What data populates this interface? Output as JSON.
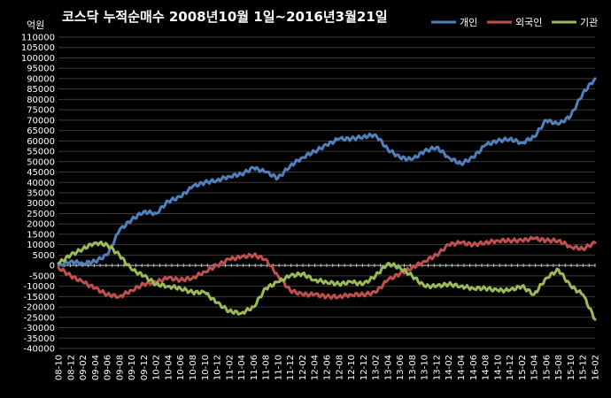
{
  "chart_data": {
    "type": "line",
    "title": "코스닥 누적순매수 2008년10월 1일~2016년3월21일",
    "ylabel": "억원",
    "xlabel": "",
    "ylim": [
      -40000,
      110000
    ],
    "y_tick_step": 5000,
    "grid": true,
    "legend_position": "top-right",
    "x": [
      "08-10",
      "08-12",
      "09-02",
      "09-04",
      "09-06",
      "09-08",
      "09-10",
      "09-12",
      "10-02",
      "10-04",
      "10-06",
      "10-08",
      "10-10",
      "10-12",
      "11-02",
      "11-04",
      "11-06",
      "11-08",
      "11-10",
      "11-12",
      "12-02",
      "12-04",
      "12-06",
      "12-08",
      "12-10",
      "12-12",
      "13-02",
      "13-04",
      "13-06",
      "13-08",
      "13-10",
      "13-12",
      "14-02",
      "14-04",
      "14-06",
      "14-08",
      "14-10",
      "14-12",
      "15-02",
      "15-04",
      "15-06",
      "15-08",
      "15-10",
      "15-12",
      "16-02"
    ],
    "series": [
      {
        "name": "개인",
        "color": "#4f81bd",
        "values": [
          0,
          2000,
          1000,
          2000,
          5000,
          17000,
          22000,
          26000,
          25000,
          31000,
          33000,
          38000,
          40000,
          41000,
          43000,
          44000,
          47000,
          45000,
          42000,
          48000,
          52000,
          55000,
          58000,
          61000,
          61000,
          62000,
          63000,
          56000,
          52000,
          51000,
          55000,
          57000,
          52000,
          49000,
          52000,
          58000,
          60000,
          61000,
          59000,
          62000,
          70000,
          68000,
          72000,
          83000,
          90000
        ]
      },
      {
        "name": "외국인",
        "color": "#c0504d",
        "values": [
          -1000,
          -5000,
          -8000,
          -11000,
          -14000,
          -15000,
          -12000,
          -9000,
          -8000,
          -6000,
          -7000,
          -6000,
          -3000,
          0,
          3000,
          4000,
          5000,
          3000,
          -5000,
          -12000,
          -14000,
          -14000,
          -15000,
          -15000,
          -14000,
          -14000,
          -13000,
          -7000,
          -4000,
          -1000,
          2000,
          5000,
          10000,
          11000,
          10000,
          11000,
          12000,
          12000,
          12000,
          13000,
          12000,
          12000,
          9000,
          8000,
          11000
        ]
      },
      {
        "name": "기관",
        "color": "#9bbb59",
        "values": [
          1000,
          5000,
          8000,
          11000,
          10000,
          5000,
          -2000,
          -5000,
          -9000,
          -10000,
          -11000,
          -13000,
          -13000,
          -18000,
          -22000,
          -23000,
          -20000,
          -11000,
          -8000,
          -5000,
          -4000,
          -7000,
          -8000,
          -9000,
          -8000,
          -9000,
          -5000,
          1000,
          -1000,
          -5000,
          -10000,
          -10000,
          -9000,
          -10000,
          -11000,
          -11000,
          -12000,
          -12000,
          -10000,
          -14000,
          -6000,
          -2000,
          -10000,
          -14000,
          -26000
        ]
      }
    ]
  }
}
